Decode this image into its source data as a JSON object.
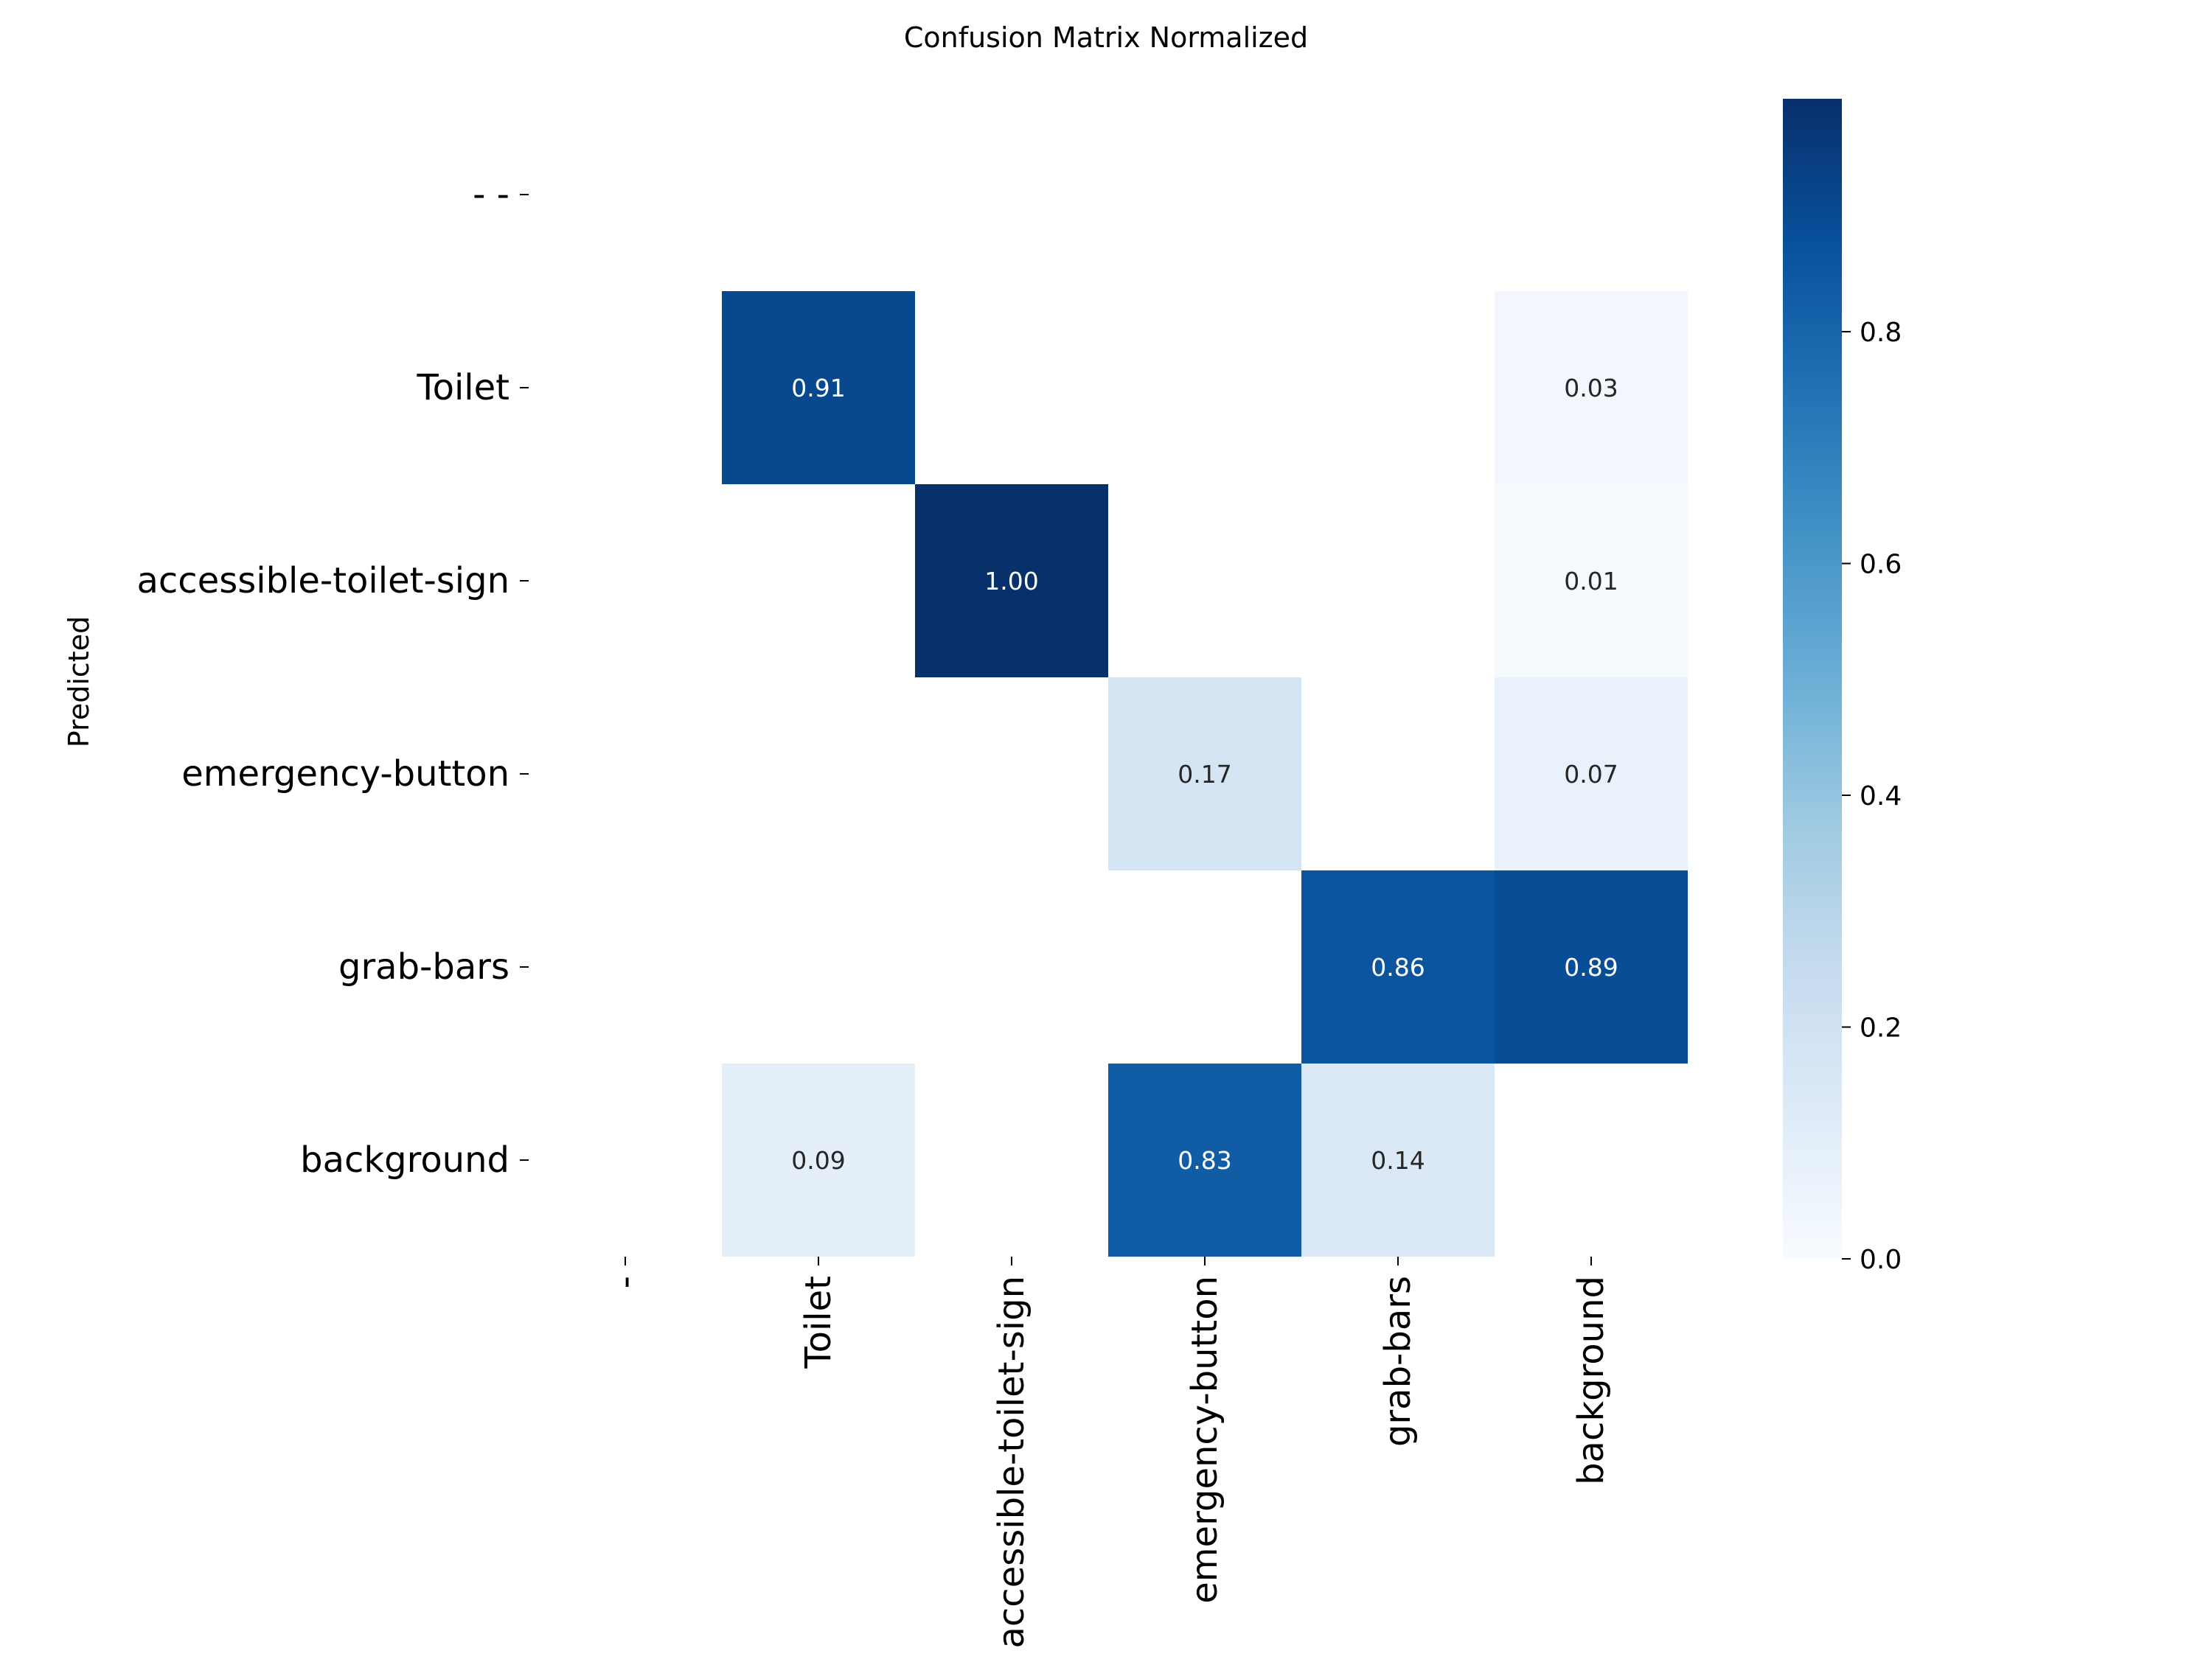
{
  "chart_data": {
    "type": "heatmap",
    "title": "Confusion Matrix Normalized",
    "ylabel": "Predicted",
    "xlabel": "",
    "x_categories": [
      "-",
      "Toilet",
      "accessible-toilet-sign",
      "emergency-button",
      "grab-bars",
      "background"
    ],
    "y_categories": [
      "- -",
      "Toilet",
      "accessible-toilet-sign",
      "emergency-button",
      "grab-bars",
      "background"
    ],
    "values": [
      [
        null,
        null,
        null,
        null,
        null,
        null
      ],
      [
        null,
        0.91,
        null,
        null,
        null,
        0.03
      ],
      [
        null,
        null,
        1.0,
        null,
        null,
        0.01
      ],
      [
        null,
        null,
        null,
        0.17,
        null,
        0.07
      ],
      [
        null,
        null,
        null,
        null,
        0.86,
        0.89
      ],
      [
        null,
        0.09,
        null,
        0.83,
        0.14,
        null
      ]
    ],
    "colormap": "Blues",
    "colorbar": {
      "range": [
        0,
        1
      ],
      "ticks": [
        "0.0",
        "0.2",
        "0.4",
        "0.6",
        "0.8"
      ]
    },
    "grid": false,
    "legend": "colorbar-right"
  }
}
